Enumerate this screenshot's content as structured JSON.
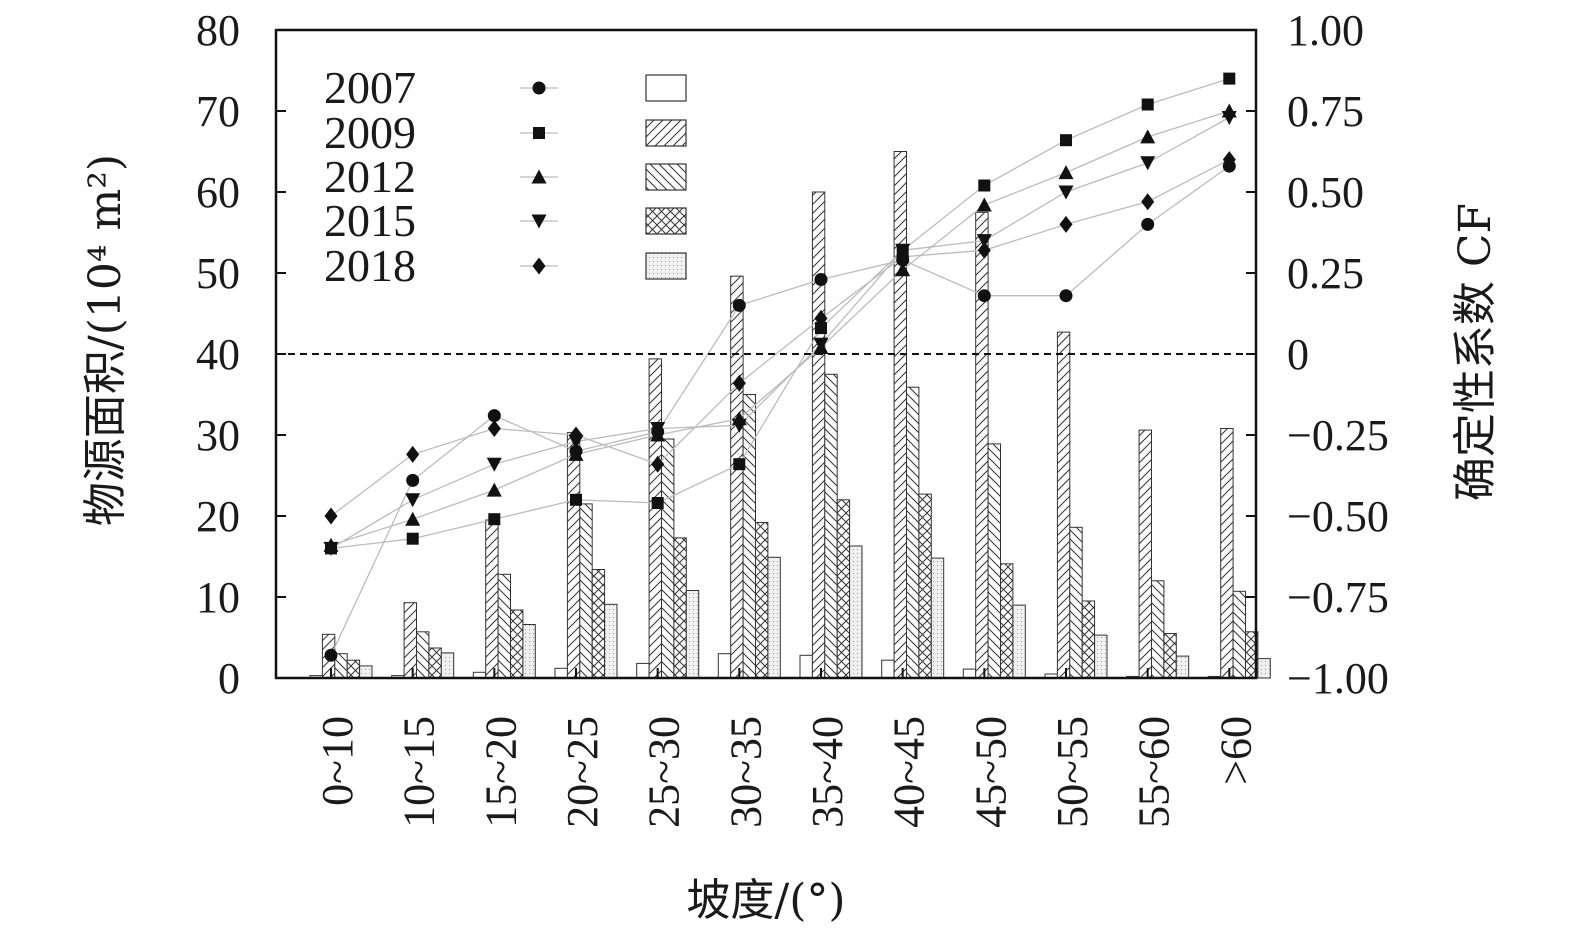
{
  "chart_data": {
    "type": "bar",
    "xlabel": "坡度/(°)",
    "ylabel_left": "物源面积/(10⁴ m²)",
    "ylabel_right": "确定性系数 CF",
    "ylim_left": [
      0,
      80
    ],
    "ylim_right": [
      -1.0,
      1.0
    ],
    "y_ticks_left": [
      "0",
      "10",
      "20",
      "30",
      "40",
      "50",
      "60",
      "70",
      "80"
    ],
    "y_ticks_right": [
      "−1.00",
      "−0.75",
      "−0.50",
      "−0.25",
      "0",
      "0.25",
      "0.50",
      "0.75",
      "1.00"
    ],
    "reference_line": {
      "axis": "right",
      "value": 0,
      "style": "dashed"
    },
    "categories": [
      "0~10",
      "10~15",
      "15~20",
      "20~25",
      "25~30",
      "30~35",
      "35~40",
      "40~45",
      "45~50",
      "50~55",
      "55~60",
      ">60"
    ],
    "legend": {
      "placement": "top-left"
    },
    "bar_series": [
      {
        "name": "2007",
        "pattern": "blank",
        "values": [
          0.3,
          0.3,
          0.7,
          1.2,
          1.8,
          3.0,
          2.8,
          2.2,
          1.1,
          0.5,
          0.2,
          0.2
        ]
      },
      {
        "name": "2009",
        "pattern": "diagonal-up",
        "values": [
          5.4,
          9.3,
          19.5,
          30.3,
          39.4,
          49.6,
          60.0,
          65.0,
          57.5,
          42.7,
          30.6,
          30.8
        ]
      },
      {
        "name": "2012",
        "pattern": "diagonal-down",
        "values": [
          3.0,
          5.7,
          12.8,
          21.5,
          29.5,
          35.0,
          37.5,
          35.9,
          28.9,
          18.6,
          12.0,
          10.7
        ]
      },
      {
        "name": "2015",
        "pattern": "crosshatch",
        "values": [
          2.2,
          3.7,
          8.4,
          13.4,
          17.3,
          19.2,
          22.0,
          22.7,
          14.1,
          9.5,
          5.5,
          5.7
        ]
      },
      {
        "name": "2018",
        "pattern": "dotted",
        "values": [
          1.5,
          3.1,
          6.6,
          9.1,
          10.8,
          14.9,
          16.3,
          14.8,
          9.0,
          5.3,
          2.7,
          2.4
        ]
      }
    ],
    "cf_series": [
      {
        "name": "2007",
        "marker": "circle",
        "values": [
          -0.93,
          -0.39,
          -0.19,
          -0.3,
          -0.24,
          0.15,
          0.23,
          0.29,
          0.18,
          0.18,
          0.4,
          0.58
        ]
      },
      {
        "name": "2009",
        "marker": "square",
        "values": [
          -0.6,
          -0.57,
          -0.51,
          -0.45,
          -0.46,
          -0.34,
          0.08,
          0.32,
          0.52,
          0.66,
          0.77,
          0.85
        ]
      },
      {
        "name": "2012",
        "marker": "triangle-up",
        "values": [
          -0.59,
          -0.51,
          -0.42,
          -0.31,
          -0.25,
          -0.2,
          0.02,
          0.26,
          0.46,
          0.56,
          0.67,
          0.75
        ]
      },
      {
        "name": "2015",
        "marker": "triangle-down",
        "values": [
          -0.6,
          -0.45,
          -0.34,
          -0.27,
          -0.23,
          -0.22,
          0.03,
          0.32,
          0.35,
          0.5,
          0.59,
          0.73
        ]
      },
      {
        "name": "2018",
        "marker": "diamond",
        "values": [
          -0.5,
          -0.31,
          -0.23,
          -0.25,
          -0.34,
          -0.09,
          0.11,
          0.3,
          0.32,
          0.4,
          0.47,
          0.6
        ]
      }
    ]
  }
}
